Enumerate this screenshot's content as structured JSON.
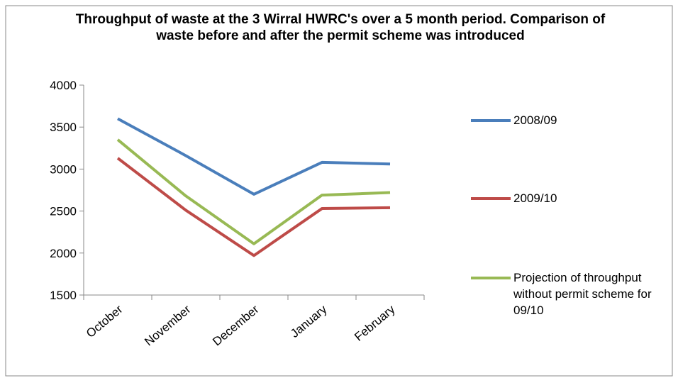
{
  "chart_data": {
    "type": "line",
    "title": "Throughput of waste at the 3 Wirral HWRC's over a 5 month period. Comparison of waste before and after the permit scheme was introduced",
    "categories": [
      "October",
      "November",
      "December",
      "January",
      "February"
    ],
    "series": [
      {
        "name": "2008/09",
        "color": "#4a7ebb",
        "values": [
          3600,
          3160,
          2700,
          3080,
          3060
        ]
      },
      {
        "name": "2009/10",
        "color": "#be4b48",
        "values": [
          3130,
          2510,
          1970,
          2530,
          2540
        ]
      },
      {
        "name": "Projection of throughput without permit scheme for 09/10",
        "color": "#98b954",
        "values": [
          3350,
          2680,
          2110,
          2690,
          2720
        ]
      }
    ],
    "ylim": [
      1500,
      4000
    ],
    "yticks": [
      1500,
      2000,
      2500,
      3000,
      3500,
      4000
    ],
    "grid": false,
    "legend": "right"
  }
}
